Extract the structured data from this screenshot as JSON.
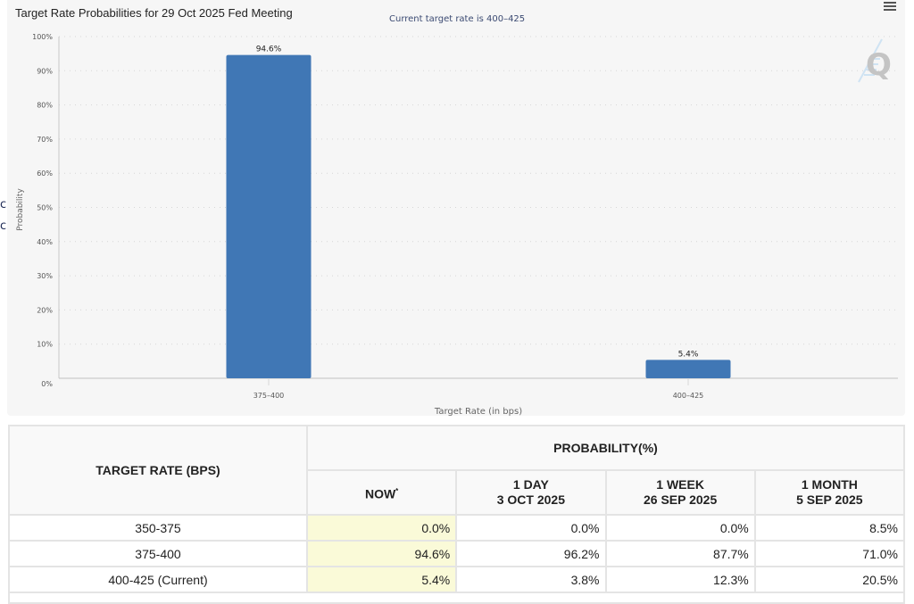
{
  "side_fragments": [
    "ch",
    "ch"
  ],
  "chart": {
    "menu_icon": "hamburger-menu-icon",
    "watermark": "Q",
    "bar_color": "#4077b5"
  },
  "chart_data": {
    "type": "bar",
    "title": "Target Rate Probabilities for 29 Oct 2025 Fed Meeting",
    "subtitle": "Current target rate is 400–425",
    "xlabel": "Target Rate (in bps)",
    "ylabel": "Probability",
    "categories": [
      "375–400",
      "400–425"
    ],
    "values": [
      94.6,
      5.4
    ],
    "data_labels": [
      "94.6%",
      "5.4%"
    ],
    "ylim": [
      0,
      100
    ],
    "yticks": [
      0,
      10,
      20,
      30,
      40,
      50,
      60,
      70,
      80,
      90,
      100
    ],
    "ytick_labels": [
      "0%",
      "10%",
      "20%",
      "30%",
      "40%",
      "50%",
      "60%",
      "70%",
      "80%",
      "90%",
      "100%"
    ],
    "grid": true,
    "legend": "none"
  },
  "table": {
    "rate_header": "TARGET RATE (BPS)",
    "prob_header": "PROBABILITY(%)",
    "columns": [
      {
        "line1": "NOW",
        "line2": "",
        "marker": "*"
      },
      {
        "line1": "1 DAY",
        "line2": "3 OCT 2025"
      },
      {
        "line1": "1 WEEK",
        "line2": "26 SEP 2025"
      },
      {
        "line1": "1 MONTH",
        "line2": "5 SEP 2025"
      }
    ],
    "rows": [
      {
        "rate": "350-375",
        "values": [
          "0.0%",
          "0.0%",
          "0.0%",
          "8.5%"
        ]
      },
      {
        "rate": "375-400",
        "values": [
          "94.6%",
          "96.2%",
          "87.7%",
          "71.0%"
        ]
      },
      {
        "rate": "400-425 (Current)",
        "values": [
          "5.4%",
          "3.8%",
          "12.3%",
          "20.5%"
        ]
      }
    ]
  }
}
